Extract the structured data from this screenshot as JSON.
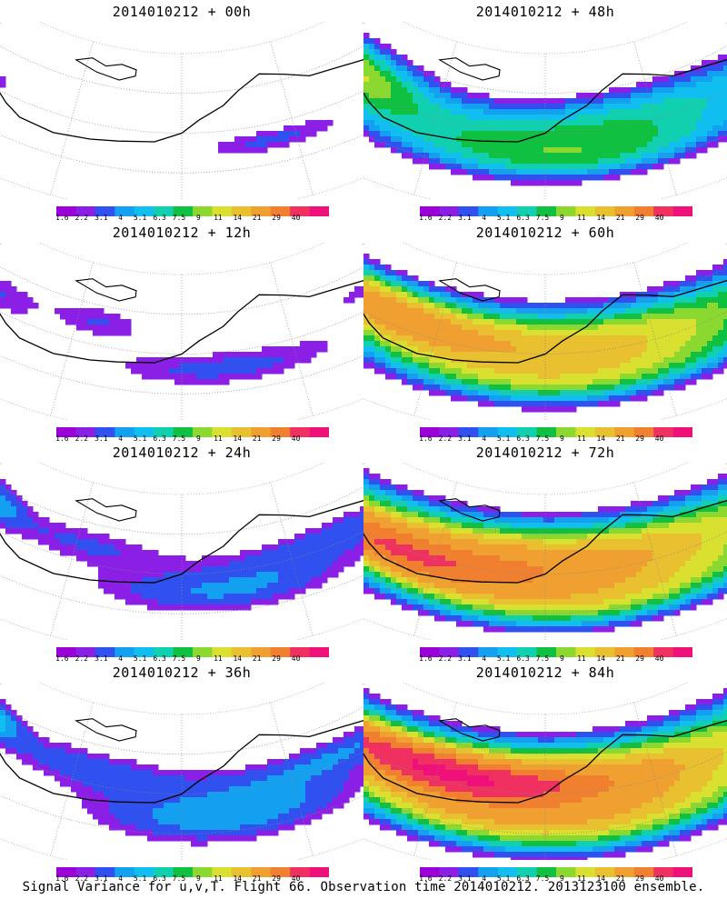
{
  "panels": [
    {
      "id": "p00",
      "title": "2014010212 + 00h",
      "field": [
        [
          0.2,
          0.44,
          0.05,
          0.05,
          0.5
        ],
        [
          0.4,
          0.6,
          0.1,
          0.09,
          1.5
        ],
        [
          0.8,
          0.45,
          0.06,
          0.07,
          9
        ]
      ],
      "extent": "small"
    },
    {
      "id": "p12",
      "title": "2014010212 + 12h",
      "field": [
        [
          0.26,
          0.38,
          0.1,
          0.08,
          1.2
        ],
        [
          0.45,
          0.6,
          0.16,
          0.13,
          1.6
        ],
        [
          0.6,
          0.35,
          0.07,
          0.12,
          1.4
        ],
        [
          0.72,
          0.4,
          0.05,
          0.14,
          1.3
        ]
      ],
      "extent": "small"
    },
    {
      "id": "p24",
      "title": "2014010212 + 24h",
      "field": [
        [
          0.3,
          0.44,
          0.16,
          0.12,
          1.6
        ],
        [
          0.45,
          0.62,
          0.16,
          0.15,
          2.0
        ],
        [
          0.62,
          0.38,
          0.12,
          0.13,
          1.4
        ],
        [
          0.75,
          0.35,
          0.05,
          0.14,
          2.5
        ]
      ],
      "extent": "medium"
    },
    {
      "id": "p36",
      "title": "2014010212 + 36h",
      "field": [
        [
          0.3,
          0.44,
          0.17,
          0.12,
          1.7
        ],
        [
          0.45,
          0.65,
          0.16,
          0.18,
          2.4
        ],
        [
          0.62,
          0.4,
          0.13,
          0.14,
          1.6
        ],
        [
          0.76,
          0.33,
          0.05,
          0.12,
          3.8
        ]
      ],
      "extent": "medium"
    },
    {
      "id": "p48",
      "title": "2014010212 + 48h",
      "field": [
        [
          0.35,
          0.45,
          0.2,
          0.18,
          2.4
        ],
        [
          0.55,
          0.55,
          0.22,
          0.2,
          3.0
        ],
        [
          0.75,
          0.4,
          0.1,
          0.18,
          5.1
        ],
        [
          0.45,
          0.68,
          0.2,
          0.12,
          2.2
        ]
      ],
      "extent": "large"
    },
    {
      "id": "p60",
      "title": "2014010212 + 60h",
      "field": [
        [
          0.35,
          0.45,
          0.22,
          0.2,
          3.3
        ],
        [
          0.55,
          0.48,
          0.22,
          0.22,
          6.0
        ],
        [
          0.7,
          0.42,
          0.12,
          0.15,
          7.0
        ],
        [
          0.45,
          0.68,
          0.24,
          0.14,
          3.0
        ]
      ],
      "extent": "large"
    },
    {
      "id": "p72",
      "title": "2014010212 + 72h",
      "field": [
        [
          0.35,
          0.45,
          0.22,
          0.22,
          4.0
        ],
        [
          0.58,
          0.45,
          0.24,
          0.22,
          9.5
        ],
        [
          0.68,
          0.52,
          0.14,
          0.12,
          11
        ],
        [
          0.45,
          0.7,
          0.24,
          0.14,
          4.0
        ]
      ],
      "extent": "large"
    },
    {
      "id": "p84",
      "title": "2014010212 + 84h",
      "field": [
        [
          0.35,
          0.45,
          0.24,
          0.24,
          4.5
        ],
        [
          0.6,
          0.48,
          0.24,
          0.22,
          12
        ],
        [
          0.62,
          0.44,
          0.14,
          0.1,
          14
        ],
        [
          0.45,
          0.72,
          0.26,
          0.16,
          4.0
        ]
      ],
      "extent": "large"
    }
  ],
  "colorbar": {
    "colors": [
      "#9B00D9",
      "#8C1FE6",
      "#3050F0",
      "#14A0F0",
      "#10BEF0",
      "#10D0B0",
      "#10C040",
      "#8AD830",
      "#DAE030",
      "#E8C030",
      "#F0A030",
      "#F08030",
      "#F03060",
      "#F0107A"
    ],
    "labels": [
      "1.6",
      "2.2",
      "3.1",
      "4",
      "5.1",
      "6.3",
      "7.5",
      "9",
      "11",
      "14",
      "21",
      "29",
      "40"
    ],
    "thresholds": [
      1.6,
      2.2,
      3.1,
      4,
      5.1,
      6.3,
      7.5,
      9,
      11,
      14,
      21,
      29,
      40
    ]
  },
  "footer": "Signal Variance for u,v,T. Flight 66. Observation time 2014010212. 2013123100 ensemble."
}
